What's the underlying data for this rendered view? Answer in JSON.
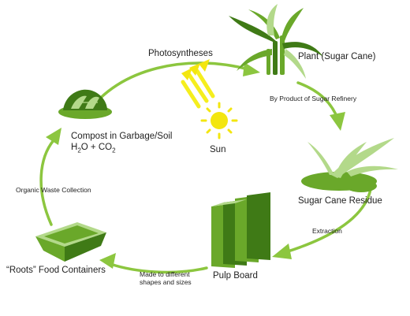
{
  "colors": {
    "arrow": "#8cc63f",
    "leaf_dark": "#3f7a16",
    "leaf_mid": "#6aa82a",
    "leaf_light": "#b3d98a",
    "sun": "#f3e60f",
    "sun_rays": "#f5ee1e",
    "text": "#222222"
  },
  "stages": {
    "plant": "Plant (Sugar Cane)",
    "residue": "Sugar Cane Residue",
    "pulp": "Pulp Board",
    "containers": "“Roots” Food Containers",
    "compost_line1": "Compost in Garbage/Soil",
    "compost_f1": "H",
    "compost_f1_sub": "2",
    "compost_f2": "O + CO",
    "compost_f2_sub": "2",
    "sun": "Sun"
  },
  "transitions": {
    "photosyntheses": "Photosyntheses",
    "by_product": "By Product of Sugar Refinery",
    "extraction": "Extraction",
    "made_line1": "Made to different",
    "made_line2": "shapes and sizes",
    "organic_waste": "Organic Waste Collection"
  },
  "icons": [
    "sugar-cane-plant-icon",
    "sugar-cane-residue-icon",
    "pulp-board-icon",
    "food-container-icon",
    "compost-pile-icon",
    "sun-icon"
  ]
}
